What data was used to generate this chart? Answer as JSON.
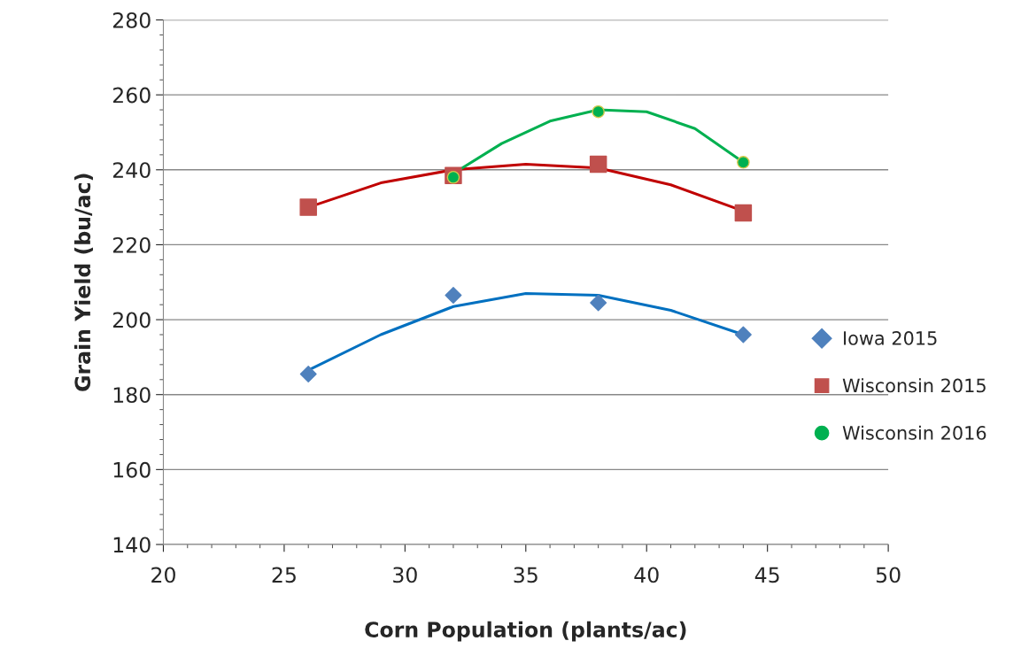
{
  "chart_data": {
    "type": "scatter",
    "xlabel": "Corn Population (plants/ac)",
    "ylabel": "Grain Yield (bu/ac)",
    "xlim": [
      20,
      50
    ],
    "xticks": [
      20,
      25,
      30,
      35,
      40,
      45,
      50
    ],
    "ylim": [
      140,
      280
    ],
    "yticks": [
      140,
      160,
      180,
      200,
      220,
      240,
      260,
      280
    ],
    "grid": "y",
    "legend": "right",
    "series": [
      {
        "name": "Iowa 2015",
        "marker": "diamond",
        "color": "#4f81bd",
        "x": [
          26,
          32,
          38,
          44
        ],
        "values": [
          185.5,
          206.5,
          204.5,
          196
        ]
      },
      {
        "name": "Wisconsin 2015",
        "marker": "square",
        "color": "#c0504d",
        "x": [
          26,
          32,
          38,
          44
        ],
        "values": [
          230,
          238.5,
          241.5,
          228.5
        ]
      },
      {
        "name": "Wisconsin 2016",
        "marker": "circle",
        "color": "#00b050",
        "x": [
          32,
          38,
          44
        ],
        "values": [
          238,
          255.5,
          242
        ]
      },
      {
        "type": "line",
        "marker": "none",
        "color": "#0070c0",
        "x": [
          26,
          29,
          32,
          35,
          38,
          41,
          44
        ],
        "values": [
          186.5,
          196,
          203.5,
          207,
          206.5,
          202.5,
          196
        ]
      },
      {
        "type": "line",
        "marker": "none",
        "color": "#c00000",
        "x": [
          26,
          29,
          32,
          35,
          38,
          41,
          44
        ],
        "values": [
          230,
          236.5,
          240,
          241.5,
          240.5,
          236,
          229
        ]
      },
      {
        "type": "line",
        "marker": "none",
        "color": "#00b050",
        "x": [
          32,
          34,
          36,
          38,
          40,
          42,
          44
        ],
        "values": [
          239,
          247,
          253,
          256,
          255.5,
          251,
          242
        ]
      }
    ]
  }
}
